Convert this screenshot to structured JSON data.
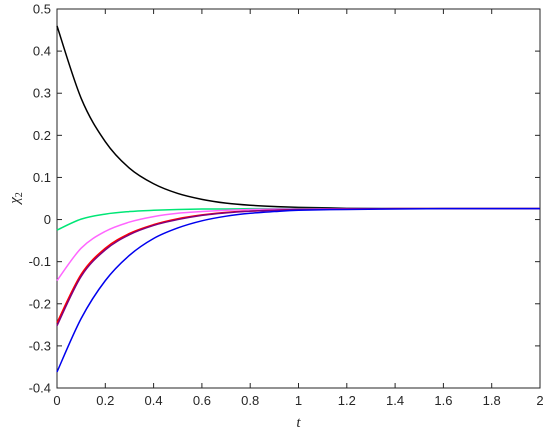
{
  "chart_data": {
    "type": "line",
    "xlabel": "t",
    "ylabel": "χ",
    "ylabel_sub": "2",
    "xlim": [
      0,
      2
    ],
    "ylim": [
      -0.4,
      0.5
    ],
    "x_ticks": [
      0,
      0.2,
      0.4,
      0.6,
      0.8,
      1,
      1.2,
      1.4,
      1.6,
      1.8,
      2
    ],
    "x_tick_labels": [
      "0",
      "0.2",
      "0.4",
      "0.6",
      "0.8",
      "1",
      "1.2",
      "1.4",
      "1.6",
      "1.8",
      "2"
    ],
    "y_ticks": [
      -0.4,
      -0.3,
      -0.2,
      -0.1,
      0,
      0.1,
      0.2,
      0.3,
      0.4,
      0.5
    ],
    "y_tick_labels": [
      "-0.4",
      "-0.3",
      "-0.2",
      "-0.1",
      "0",
      "0.1",
      "0.2",
      "0.3",
      "0.4",
      "0.5"
    ],
    "grid": false,
    "x": [
      0,
      0.1,
      0.2,
      0.3,
      0.4,
      0.5,
      0.6,
      0.7,
      0.8,
      0.9,
      1.0,
      1.2,
      1.4,
      1.6,
      1.8,
      2.0
    ],
    "series": [
      {
        "color": "#000000",
        "values": [
          0.46,
          0.288,
          0.185,
          0.122,
          0.085,
          0.062,
          0.048,
          0.039,
          0.034,
          0.031,
          0.029,
          0.027,
          0.026,
          0.026,
          0.026,
          0.026
        ]
      },
      {
        "color": "#00e676",
        "values": [
          -0.025,
          0.001,
          0.013,
          0.019,
          0.022,
          0.024,
          0.025,
          0.025,
          0.026,
          0.026,
          0.026,
          0.026,
          0.026,
          0.026,
          0.026,
          0.026
        ]
      },
      {
        "color": "#ff66ff",
        "values": [
          -0.145,
          -0.068,
          -0.028,
          -0.006,
          0.007,
          0.015,
          0.019,
          0.022,
          0.024,
          0.025,
          0.025,
          0.026,
          0.026,
          0.026,
          0.026,
          0.026
        ]
      },
      {
        "color": "#ff0000",
        "values": [
          -0.245,
          -0.13,
          -0.068,
          -0.033,
          -0.012,
          0.002,
          0.011,
          0.017,
          0.02,
          0.022,
          0.024,
          0.025,
          0.026,
          0.026,
          0.026,
          0.026
        ]
      },
      {
        "color": "#800080",
        "values": [
          -0.252,
          -0.135,
          -0.072,
          -0.036,
          -0.014,
          0.0,
          0.01,
          0.016,
          0.02,
          0.022,
          0.024,
          0.025,
          0.026,
          0.026,
          0.026,
          0.026
        ]
      },
      {
        "color": "#0000ee",
        "values": [
          -0.362,
          -0.235,
          -0.145,
          -0.085,
          -0.045,
          -0.02,
          -0.003,
          0.008,
          0.015,
          0.019,
          0.022,
          0.024,
          0.025,
          0.026,
          0.026,
          0.026
        ]
      }
    ]
  }
}
